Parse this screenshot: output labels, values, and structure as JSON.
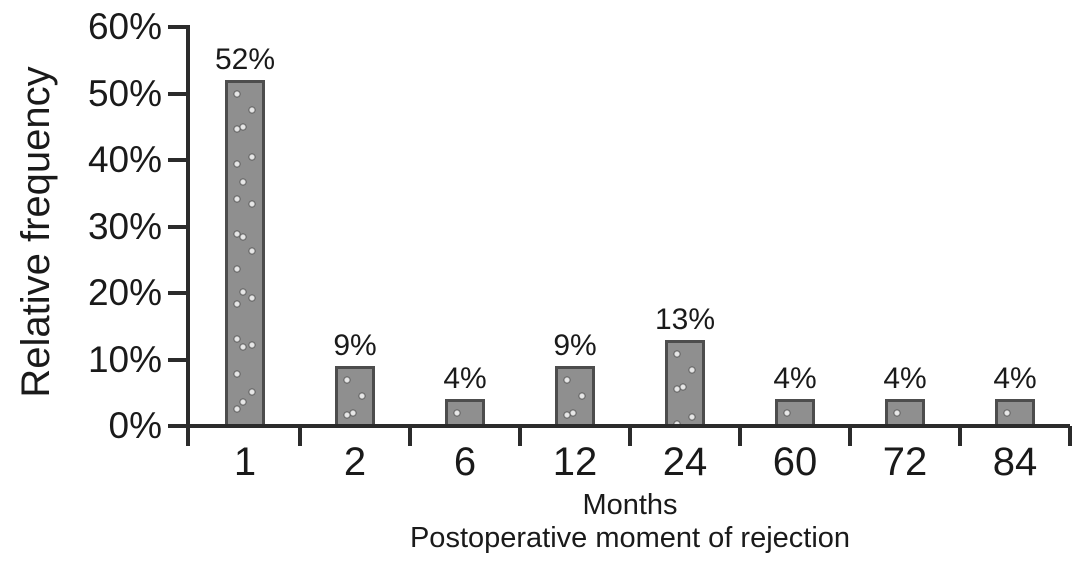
{
  "chart_data": {
    "type": "bar",
    "title": "",
    "categories": [
      "1",
      "2",
      "6",
      "12",
      "24",
      "60",
      "72",
      "84"
    ],
    "values": [
      52,
      9,
      4,
      9,
      13,
      4,
      4,
      4
    ],
    "bar_labels": [
      "52%",
      "9%",
      "4%",
      "9%",
      "13%",
      "4%",
      "4%",
      "4%"
    ],
    "xlabel": "Months",
    "xlabel2": "Postoperative moment of rejection",
    "ylabel": "Relative frequency",
    "y_ticks": [
      "0%",
      "10%",
      "20%",
      "30%",
      "40%",
      "50%",
      "60%"
    ],
    "ylim": [
      0,
      60
    ],
    "grid": false,
    "legend_position": "none",
    "colors": {
      "background": "#ffffff",
      "text": "#1a1a1a",
      "axis": "#2b2b2b",
      "bar_fill": "#8f8f8f",
      "bar_border": "#4d4d4d",
      "bar_dot": "#e6e6e6"
    }
  }
}
